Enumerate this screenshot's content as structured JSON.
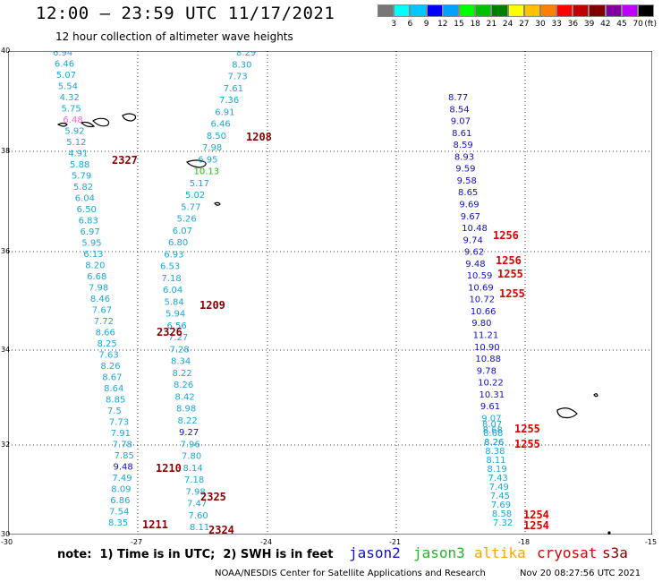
{
  "header": {
    "title": "12:00 – 23:59 UTC 11/17/2021",
    "subtitle": "12 hour collection of altimeter wave heights"
  },
  "colorbar": {
    "unit": "(ft)",
    "labels": [
      "3",
      "6",
      "9",
      "12",
      "15",
      "18",
      "21",
      "24",
      "27",
      "30",
      "33",
      "36",
      "39",
      "42",
      "45",
      "70"
    ],
    "colors": [
      "#777777",
      "#00ffff",
      "#00c8ff",
      "#0000ff",
      "#00a0ff",
      "#00ff00",
      "#00c000",
      "#008000",
      "#ffff00",
      "#ffc000",
      "#ff8000",
      "#ff0000",
      "#c00000",
      "#800000",
      "#8000a0",
      "#c000ff",
      "#000000"
    ]
  },
  "map": {
    "lat_labels": [
      "40",
      "38",
      "36",
      "34",
      "32",
      "30"
    ],
    "lon_labels": [
      "-30",
      "-27",
      "-24",
      "-21",
      "-18",
      "-15"
    ]
  },
  "tracks": {
    "colors": {
      "cyan": "#1aa7d9",
      "blue": "#1010c8",
      "red": "#e00000",
      "maroon": "#8b0000",
      "green": "#22b622"
    },
    "track1": [
      "6.94",
      "6.46",
      "5.07",
      "5.54",
      "4.32",
      "5.75",
      "6.48",
      "5.92",
      "5.12",
      "4.91",
      "5.88",
      "5.79",
      "5.82",
      "6.04",
      "6.50",
      "6.83",
      "6.97",
      "5.95",
      "6.13",
      "8.20",
      "6.68",
      "7.98",
      "8.46",
      "7.67",
      "7.72",
      "8.66",
      "8.25",
      "7.63",
      "8.26",
      "8.67",
      "8.64",
      "8.85",
      "7.5",
      "7.73",
      "7.91",
      "7.78",
      "7.85",
      "9.48",
      "7.49",
      "8.09",
      "6.86",
      "7.54",
      "8.35"
    ],
    "track2": [
      "8.29",
      "8.30",
      "7.73",
      "7.61",
      "7.36",
      "6.91",
      "6.46",
      "8.50",
      "7.98",
      "6.95",
      "10.13",
      "5.17",
      "5.02",
      "5.77",
      "5.26",
      "6.07",
      "6.80",
      "6.93",
      "6.53",
      "7.18",
      "6.04",
      "5.84",
      "5.94",
      "6.56",
      "7.27",
      "7.28",
      "8.34",
      "8.22",
      "8.26",
      "8.42",
      "8.98",
      "8.22",
      "9.27",
      "7.96",
      "7.80",
      "8.14",
      "7.18",
      "7.98",
      "7.47",
      "7.60",
      "8.11"
    ],
    "track3_blue": [
      "8.77",
      "8.54",
      "9.07",
      "8.61",
      "8.59",
      "8.93",
      "9.59",
      "9.58",
      "8.65",
      "9.69",
      "9.67",
      "10.48",
      "9.74",
      "9.62",
      "9.48",
      "10.59",
      "10.69",
      "10.72",
      "10.66",
      "9.80",
      "11.21",
      "10.90",
      "10.88",
      "9.78",
      "10.22",
      "10.31",
      "9.61",
      "9.07",
      "8.68",
      "8.26"
    ],
    "track3_cyan": [
      "8.59",
      "8.93",
      "9.59",
      "8.65",
      "9.69",
      "8.07",
      "8.68",
      "8.26",
      "8.38",
      "8.11",
      "8.19",
      "7.43",
      "7.49",
      "7.45",
      "7.69",
      "8.58",
      "7.32"
    ],
    "time_labels": [
      {
        "text": "2327",
        "color": "maroon"
      },
      {
        "text": "1208",
        "color": "maroon"
      },
      {
        "text": "1256",
        "color": "red"
      },
      {
        "text": "1256",
        "color": "red"
      },
      {
        "text": "1255",
        "color": "red"
      },
      {
        "text": "1255",
        "color": "red"
      },
      {
        "text": "1209",
        "color": "maroon"
      },
      {
        "text": "2326",
        "color": "maroon"
      },
      {
        "text": "1255",
        "color": "red"
      },
      {
        "text": "1255",
        "color": "red"
      },
      {
        "text": "1210",
        "color": "maroon"
      },
      {
        "text": "2325",
        "color": "maroon"
      },
      {
        "text": "1254",
        "color": "red"
      },
      {
        "text": "1254",
        "color": "red"
      },
      {
        "text": "1211",
        "color": "maroon"
      },
      {
        "text": "2324",
        "color": "maroon"
      }
    ]
  },
  "footer": {
    "note": "note:  1) Time is in UTC;  2) SWH is in feet",
    "legend": [
      {
        "name": "jason2",
        "color": "#1010c8"
      },
      {
        "name": "jason3",
        "color": "#22b622"
      },
      {
        "name": "altika",
        "color": "#ffa500"
      },
      {
        "name": "cryosat",
        "color": "#e00000"
      },
      {
        "name": "s3a",
        "color": "#8b0000"
      }
    ],
    "credit": "NOAA/NESDIS Center for Satellite Applications and Research",
    "timestamp": "Nov 20 08:27:56 UTC 2021"
  }
}
